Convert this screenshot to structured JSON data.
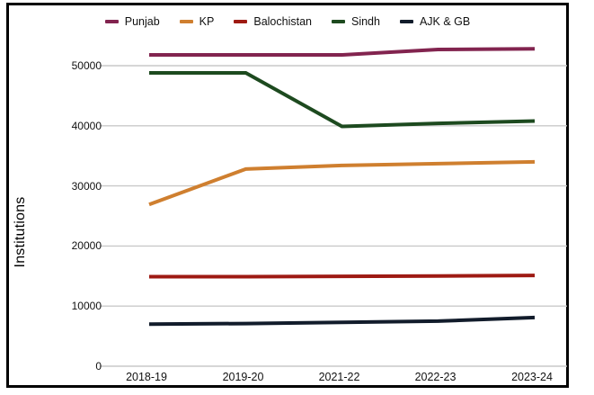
{
  "figure": {
    "background_color": "#ffffff",
    "frame_border_color": "#000000",
    "gridline_color": "#c9c9c9"
  },
  "chart_data": {
    "type": "line",
    "title": "",
    "xlabel": "",
    "ylabel": "Institutions",
    "categories": [
      "2018-19",
      "2019-20",
      "2021-22",
      "2022-23",
      "2023-24"
    ],
    "series": [
      {
        "name": "Punjab",
        "color": "#82244f",
        "values": [
          51800,
          51800,
          51800,
          52700,
          52800
        ]
      },
      {
        "name": "KP",
        "color": "#cf7f2f",
        "values": [
          26900,
          32800,
          33400,
          33700,
          34000
        ]
      },
      {
        "name": "Balochistan",
        "color": "#9e1a13",
        "values": [
          14900,
          14900,
          14950,
          15000,
          15100
        ]
      },
      {
        "name": "Sindh",
        "color": "#1d4a1f",
        "values": [
          48800,
          48800,
          39900,
          40400,
          40800
        ]
      },
      {
        "name": "AJK & GB",
        "color": "#121c2b",
        "values": [
          7000,
          7100,
          7300,
          7500,
          8100
        ]
      }
    ],
    "yticks": [
      0,
      10000,
      20000,
      30000,
      40000,
      50000
    ],
    "ylim": [
      0,
      55000
    ],
    "grid": true,
    "legend_position": "top"
  }
}
